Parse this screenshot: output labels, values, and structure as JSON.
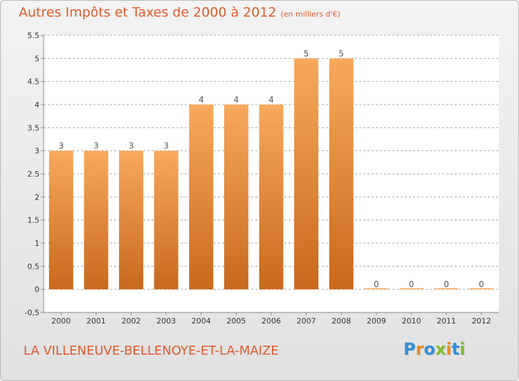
{
  "title": "Autres Impôts et Taxes de 2000 à 2012",
  "subtitle": "(en milliers d'€)",
  "commune": "LA VILLENEUVE-BELLENOYE-ET-LA-MAIZE",
  "logo": {
    "text": "Proxiti",
    "letters": [
      {
        "ch": "P",
        "color": "#2f8fd9"
      },
      {
        "ch": "r",
        "color": "#f08a1f"
      },
      {
        "ch": "o",
        "color": "#2f8fd9"
      },
      {
        "ch": "x",
        "color": "#7cbf2e"
      },
      {
        "ch": "i",
        "color": "#f08a1f"
      },
      {
        "ch": "t",
        "color": "#2f8fd9"
      },
      {
        "ch": "i",
        "color": "#7cbf2e"
      }
    ]
  },
  "colors": {
    "accent": "#e05a2b",
    "bar_top": "#f8a95c",
    "bar_bottom": "#c8691d",
    "grid": "#a8a8a8",
    "plot_bg": "#ffffff"
  },
  "chart_data": {
    "type": "bar",
    "title": "Autres Impôts et Taxes de 2000 à 2012",
    "subtitle": "(en milliers d'€)",
    "xlabel": "",
    "ylabel": "",
    "categories": [
      "2000",
      "2001",
      "2002",
      "2003",
      "2004",
      "2005",
      "2006",
      "2007",
      "2008",
      "2009",
      "2010",
      "2011",
      "2012"
    ],
    "values": [
      3,
      3,
      3,
      3,
      4,
      4,
      4,
      5,
      5,
      0,
      0,
      0,
      0
    ],
    "ylim": [
      -0.5,
      5.5
    ],
    "yticks": [
      "-0,5",
      "0",
      "0.5",
      "1",
      "1.5",
      "2",
      "2.5",
      "3",
      "3.5",
      "4",
      "4.5",
      "5",
      "5.5"
    ],
    "grid": true
  }
}
